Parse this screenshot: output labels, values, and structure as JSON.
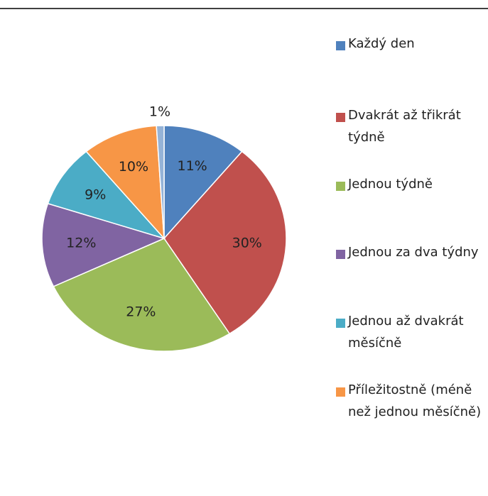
{
  "chart_data": {
    "type": "pie",
    "categories": [
      "Každý den",
      "Dvakrát až třikrát týdně",
      "Jednou týdně",
      "Jednou za dva týdny",
      "Jednou až dvakrát měsíčně",
      "Příležitostně (méně než jednou měsíčně)",
      null
    ],
    "values": [
      11,
      30,
      27,
      12,
      9,
      10,
      1
    ],
    "value_labels": [
      "11%",
      "30%",
      "27%",
      "12%",
      "9%",
      "10%",
      "1%"
    ],
    "colors": [
      "#4f81bd",
      "#c0504d",
      "#9bbb59",
      "#8064a2",
      "#4bacc6",
      "#f79646",
      "#95b3d7"
    ],
    "legend": "right"
  }
}
